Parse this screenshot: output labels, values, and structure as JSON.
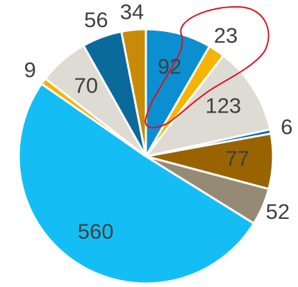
{
  "chart_data": {
    "type": "pie",
    "categories": [
      null,
      null,
      null,
      null,
      null,
      null,
      null,
      null,
      null,
      null,
      null
    ],
    "values": [
      92,
      23,
      123,
      6,
      77,
      52,
      560,
      9,
      70,
      56,
      34
    ],
    "colors": [
      "#0b8fd1",
      "#f5b400",
      "#dedad4",
      "#0a6aa0",
      "#996400",
      "#958a74",
      "#14bef5",
      "#f5b400",
      "#dedad4",
      "#0a6a9c",
      "#c98a08"
    ]
  }
}
